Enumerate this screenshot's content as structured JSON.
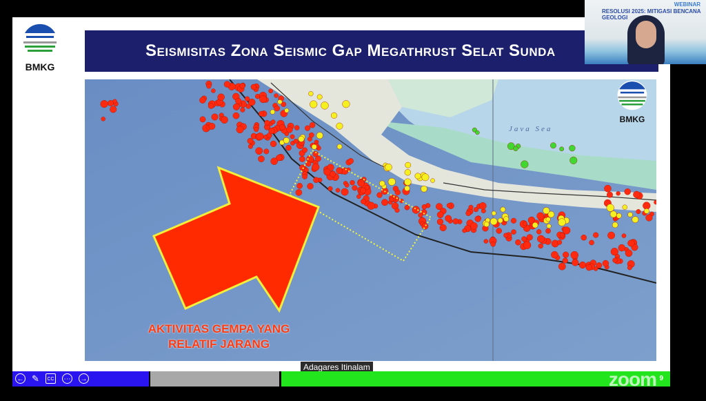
{
  "slide": {
    "logo_text": "BMKG",
    "title": "Seismisitas Zona Seismic Gap Megathrust Selat Sunda",
    "map": {
      "logo_text": "BMKG",
      "sea_label": "Java Sea",
      "caption_line1": "AKTIVITAS GEMPA YANG",
      "caption_line2": "RELATIF JARANG",
      "colors": {
        "ocean": "#6f93c4",
        "land": "#e6e6dc",
        "shallow": "#a8dcc8",
        "arrow": "#ff2a00",
        "arrow_outline": "#f5ee3a",
        "gap_box": "#f5f53a",
        "eq_red": "#ff2a10",
        "eq_yellow": "#f5f020",
        "eq_green": "#40d830"
      }
    }
  },
  "webcam": {
    "banner": "RESOLUSI 2025: MITIGASI BENCANA GEOLOGI",
    "webinar_label": "WEBINAR"
  },
  "speaker_name": "Adagares Itinalam",
  "toolbar": {
    "icons": [
      "arrow-left-icon",
      "pencil-icon",
      "cc-icon",
      "more-icon",
      "arrow-right-icon"
    ],
    "zoom_logo": "zoom",
    "page_number": "9",
    "colors": {
      "blue": "#2a14f0",
      "gray": "#a8a8a8",
      "green": "#22e51e"
    }
  }
}
